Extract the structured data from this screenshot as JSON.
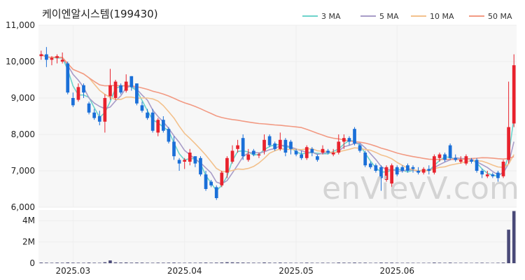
{
  "chart_data": {
    "type": "candlestick",
    "title": "케이엔알시스템(199430)",
    "watermark": "enVievV.com",
    "price_axis": {
      "ylim": [
        6000,
        11000
      ],
      "ticks": [
        6000,
        7000,
        8000,
        9000,
        10000,
        11000
      ],
      "tick_labels": [
        "6,000",
        "7,000",
        "8,000",
        "9,000",
        "10,000",
        "11,000"
      ]
    },
    "volume_axis": {
      "ylim": [
        0,
        5000000
      ],
      "ticks": [
        0,
        2000000,
        4000000
      ],
      "tick_labels": [
        "0",
        "2M",
        "4M"
      ]
    },
    "x_ticks": [
      {
        "index": 6,
        "label": "2025.03"
      },
      {
        "index": 27,
        "label": "2025.04"
      },
      {
        "index": 48,
        "label": "2025.05"
      },
      {
        "index": 67,
        "label": "2025.06"
      }
    ],
    "legend": [
      {
        "name": "3 MA",
        "color": "#6dd3cb"
      },
      {
        "name": "5 MA",
        "color": "#a89cc8"
      },
      {
        "name": "10 MA",
        "color": "#f3c18c"
      },
      {
        "name": "50 MA",
        "color": "#f29a83"
      }
    ],
    "colors": {
      "up": "#e8222d",
      "down": "#1a6fd8",
      "volume": "#4a4a78",
      "grid": "#eeeeee",
      "plot_bg": "#f7f7f7"
    },
    "ohlc": [
      [
        10150,
        10300,
        10050,
        10200
      ],
      [
        10200,
        10400,
        9850,
        10050
      ],
      [
        10050,
        10150,
        9900,
        10100
      ],
      [
        10100,
        10200,
        9950,
        10150
      ],
      [
        10000,
        10250,
        9950,
        10050
      ],
      [
        9950,
        10000,
        9100,
        9150
      ],
      [
        9000,
        9150,
        8750,
        8800
      ],
      [
        8950,
        9400,
        8900,
        9300
      ],
      [
        9350,
        9400,
        9000,
        9150
      ],
      [
        8850,
        8900,
        8550,
        8600
      ],
      [
        8600,
        8700,
        8400,
        8450
      ],
      [
        8500,
        8650,
        8250,
        8350
      ],
      [
        8350,
        9100,
        8050,
        9000
      ],
      [
        9050,
        9800,
        8950,
        9350
      ],
      [
        9000,
        9500,
        8950,
        9450
      ],
      [
        9350,
        9400,
        9100,
        9150
      ],
      [
        9200,
        9650,
        9150,
        9450
      ],
      [
        9600,
        9600,
        9200,
        9300
      ],
      [
        9400,
        9400,
        8800,
        8850
      ],
      [
        8800,
        8900,
        8600,
        8650
      ],
      [
        8600,
        8700,
        8400,
        8450
      ],
      [
        8600,
        8700,
        8050,
        8100
      ],
      [
        8050,
        8450,
        7950,
        8400
      ],
      [
        8400,
        8500,
        8050,
        8100
      ],
      [
        8150,
        8200,
        7750,
        7800
      ],
      [
        7800,
        7950,
        7300,
        7400
      ],
      [
        7300,
        7350,
        7000,
        7200
      ],
      [
        7250,
        7350,
        7050,
        7300
      ],
      [
        7250,
        7600,
        7150,
        7500
      ],
      [
        7400,
        7400,
        7100,
        7200
      ],
      [
        7350,
        7400,
        6850,
        6900
      ],
      [
        6900,
        7000,
        6450,
        6500
      ],
      [
        6700,
        6750,
        6550,
        6600
      ],
      [
        6550,
        6600,
        6200,
        6250
      ],
      [
        6600,
        7000,
        6550,
        6950
      ],
      [
        6950,
        7400,
        6800,
        7350
      ],
      [
        7250,
        7700,
        7200,
        7550
      ],
      [
        7600,
        7850,
        7500,
        7700
      ],
      [
        7900,
        8000,
        7300,
        7400
      ],
      [
        7300,
        7600,
        7250,
        7450
      ],
      [
        7550,
        7600,
        7400,
        7450
      ],
      [
        7450,
        7500,
        7350,
        7450
      ],
      [
        7550,
        8000,
        7450,
        7850
      ],
      [
        7950,
        8000,
        7650,
        7700
      ],
      [
        7750,
        7800,
        7550,
        7600
      ],
      [
        7600,
        8050,
        7550,
        7850
      ],
      [
        7850,
        7900,
        7400,
        7500
      ],
      [
        7800,
        7850,
        7450,
        7600
      ],
      [
        7550,
        7600,
        7400,
        7450
      ],
      [
        7450,
        7550,
        7300,
        7350
      ],
      [
        7350,
        7700,
        7300,
        7650
      ],
      [
        7600,
        7650,
        7400,
        7500
      ],
      [
        7400,
        7450,
        7250,
        7300
      ],
      [
        7500,
        7700,
        7450,
        7600
      ],
      [
        7550,
        7600,
        7450,
        7500
      ],
      [
        7450,
        7600,
        7400,
        7500
      ],
      [
        7500,
        8000,
        7450,
        7800
      ],
      [
        7800,
        8000,
        7600,
        7900
      ],
      [
        7900,
        7950,
        7700,
        7800
      ],
      [
        8150,
        8200,
        7700,
        7750
      ],
      [
        7700,
        7750,
        7500,
        7550
      ],
      [
        7500,
        7550,
        7100,
        7150
      ],
      [
        7200,
        7250,
        7050,
        7100
      ],
      [
        7150,
        7200,
        6950,
        7000
      ],
      [
        7100,
        7150,
        6450,
        6800
      ],
      [
        6750,
        7150,
        6700,
        7100
      ],
      [
        6650,
        7200,
        6550,
        7150
      ],
      [
        7100,
        7150,
        6850,
        6900
      ],
      [
        7100,
        7150,
        6950,
        7000
      ],
      [
        7150,
        7200,
        6950,
        7000
      ],
      [
        7100,
        7150,
        6950,
        7050
      ],
      [
        7000,
        7100,
        6900,
        6950
      ],
      [
        6950,
        7100,
        6900,
        7050
      ],
      [
        7050,
        7150,
        6900,
        7000
      ],
      [
        6950,
        7450,
        6900,
        7400
      ],
      [
        7350,
        7500,
        7250,
        7450
      ],
      [
        7450,
        7500,
        7250,
        7300
      ],
      [
        7700,
        7750,
        7300,
        7350
      ],
      [
        7350,
        7450,
        7250,
        7300
      ],
      [
        7250,
        7400,
        7200,
        7300
      ],
      [
        7200,
        7450,
        7150,
        7400
      ],
      [
        7300,
        7350,
        7200,
        7250
      ],
      [
        7300,
        7350,
        6950,
        7000
      ],
      [
        7000,
        7050,
        6800,
        6900
      ],
      [
        6850,
        7000,
        6800,
        6900
      ],
      [
        6900,
        6950,
        6800,
        6850
      ],
      [
        6950,
        7000,
        6700,
        6800
      ],
      [
        6850,
        7300,
        6800,
        7250
      ],
      [
        7300,
        9450,
        7200,
        8200
      ],
      [
        8300,
        10200,
        8200,
        9900
      ]
    ],
    "volume": [
      60000,
      50000,
      40000,
      55000,
      45000,
      70000,
      50000,
      45000,
      40000,
      60000,
      45000,
      40000,
      90000,
      260000,
      80000,
      60000,
      70000,
      50000,
      60000,
      55000,
      45000,
      40000,
      50000,
      45000,
      50000,
      60000,
      40000,
      35000,
      45000,
      40000,
      50000,
      60000,
      45000,
      55000,
      70000,
      90000,
      80000,
      70000,
      60000,
      50000,
      45000,
      40000,
      70000,
      50000,
      45000,
      60000,
      45000,
      40000,
      35000,
      40000,
      55000,
      40000,
      35000,
      45000,
      40000,
      35000,
      60000,
      50000,
      45000,
      60000,
      45000,
      50000,
      35000,
      40000,
      60000,
      50000,
      55000,
      40000,
      35000,
      40000,
      35000,
      30000,
      35000,
      35000,
      60000,
      45000,
      40000,
      55000,
      35000,
      35000,
      40000,
      30000,
      40000,
      45000,
      35000,
      30000,
      40000,
      60000,
      3150000,
      4900000
    ]
  }
}
